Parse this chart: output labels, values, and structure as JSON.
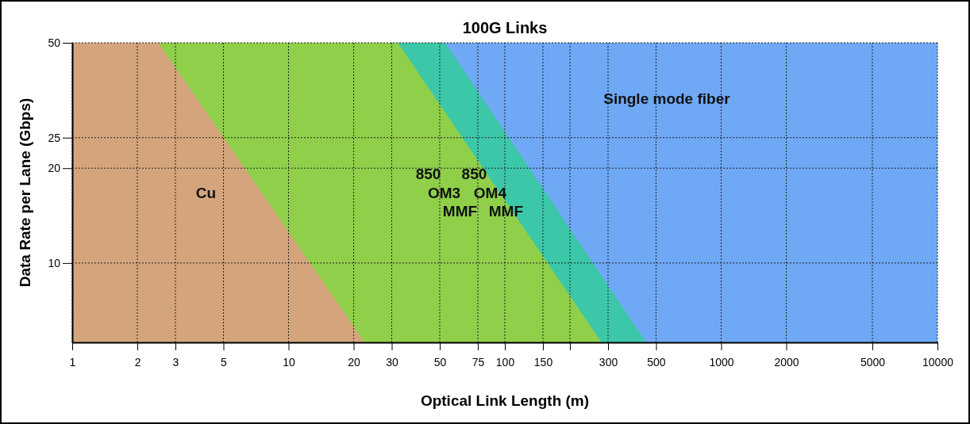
{
  "chart_data": {
    "type": "area",
    "title": "100G Links",
    "xlabel": "Optical Link Length (m)",
    "ylabel": "Data Rate per Lane (Gbps)",
    "log": "xy",
    "xlim": [
      1,
      10000
    ],
    "ylim": [
      5.6,
      50
    ],
    "xticks": [
      1,
      2,
      3,
      5,
      10,
      20,
      30,
      50,
      75,
      100,
      150,
      {
        "value": 200,
        "label": null
      },
      300,
      500,
      1000,
      2000,
      5000,
      10000
    ],
    "yticks": [
      10,
      20,
      25,
      50
    ],
    "grid": true,
    "series": [
      {
        "name": "Single mode fiber",
        "color": "#6fa8f5",
        "x": [
          53,
          10000
        ],
        "values": [
          50,
          50
        ]
      },
      {
        "name": "850\nOM4\nMMF",
        "color": "#3cc8a8",
        "x": [
          32,
          53,
          450
        ],
        "values": [
          50,
          50,
          5.6
        ]
      },
      {
        "name": "850\nOM3\nMMF",
        "color": "#8fcf4a",
        "x": [
          2.5,
          32,
          280
        ],
        "values": [
          50,
          50,
          5.6
        ]
      },
      {
        "name": "Cu",
        "color": "#d4a57c",
        "x": [
          1,
          2.5,
          22.5
        ],
        "values": [
          50,
          50,
          5.6
        ]
      }
    ]
  }
}
